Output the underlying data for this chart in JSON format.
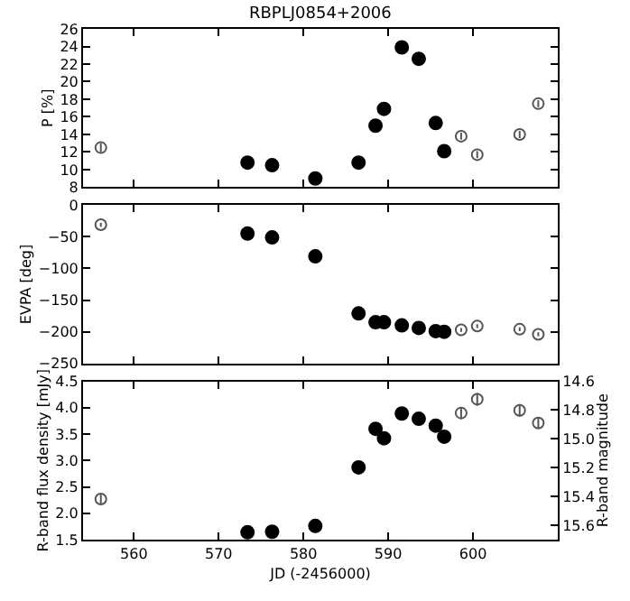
{
  "chart_data": [
    {
      "type": "scatter",
      "title": "RBPLJ0854+2006",
      "ylabel": "P [%]",
      "xlim": [
        554,
        610
      ],
      "xticks": [
        560,
        570,
        580,
        590,
        600
      ],
      "ylim": [
        8,
        26
      ],
      "yticks": [
        8,
        10,
        12,
        14,
        16,
        18,
        20,
        22,
        24,
        26
      ],
      "tick_labels": "y",
      "series": [
        {
          "color": "#000000",
          "marker": "circle",
          "x": [
            573.4,
            576.3,
            581.4,
            586.5,
            588.5,
            589.5,
            591.6,
            593.6,
            595.6,
            596.6
          ],
          "values": [
            10.8,
            10.5,
            9.0,
            10.8,
            15.0,
            16.9,
            23.9,
            22.6,
            15.3,
            12.1
          ]
        },
        {
          "color": "#555555",
          "marker": "circle-open",
          "x": [
            556.1,
            598.6,
            600.5,
            605.5,
            607.7
          ],
          "values": [
            12.5,
            13.8,
            11.7,
            14.0,
            17.5
          ],
          "errors": [
            0.5,
            0.4,
            0.4,
            0.4,
            0.4
          ]
        }
      ]
    },
    {
      "type": "scatter",
      "ylabel": "EVPA [deg]",
      "xlim": [
        554,
        610
      ],
      "xticks": [
        560,
        570,
        580,
        590,
        600
      ],
      "ylim": [
        -250,
        0
      ],
      "yticks": [
        -250,
        -200,
        -150,
        -100,
        -50,
        0
      ],
      "tick_labels": "y",
      "series": [
        {
          "color": "#000000",
          "marker": "circle",
          "x": [
            573.4,
            576.3,
            581.4,
            586.5,
            588.5,
            589.5,
            591.6,
            593.6,
            595.6,
            596.6
          ],
          "values": [
            -45,
            -51,
            -81,
            -171,
            -185,
            -185,
            -190,
            -194,
            -199,
            -200
          ]
        },
        {
          "color": "#555555",
          "marker": "circle-open",
          "x": [
            556.1,
            598.6,
            600.5,
            605.5,
            607.7
          ],
          "values": [
            -31,
            -197,
            -191,
            -196,
            -204
          ],
          "errors": [
            3,
            3,
            3,
            3,
            3
          ]
        }
      ]
    },
    {
      "type": "scatter",
      "xlabel": "JD (-2456000)",
      "ylabel": "R-band flux density [mJy]",
      "y2label": "R-band magnitude",
      "xlim": [
        554,
        610
      ],
      "xticks": [
        560,
        570,
        580,
        590,
        600
      ],
      "ylim": [
        1.5,
        4.5
      ],
      "yticks": [
        1.5,
        {
          "value": 2,
          "label": "2.0"
        },
        2.5,
        {
          "value": 3,
          "label": "3.0"
        },
        3.5,
        {
          "value": 4,
          "label": "4.0"
        },
        4.5
      ],
      "y2lim": [
        15.7,
        14.6
      ],
      "y2ticks": [
        {
          "value": 14.6,
          "label": "14.6"
        },
        {
          "value": 14.8,
          "label": "14.8"
        },
        {
          "value": 15.0,
          "label": "15.0"
        },
        {
          "value": 15.2,
          "label": "15.2"
        },
        {
          "value": 15.4,
          "label": "15.4"
        },
        {
          "value": 15.6,
          "label": "15.6"
        }
      ],
      "series": [
        {
          "color": "#000000",
          "marker": "circle",
          "x": [
            573.4,
            576.3,
            581.4,
            586.5,
            588.5,
            589.5,
            591.6,
            593.6,
            595.6,
            596.6
          ],
          "values": [
            1.64,
            1.65,
            1.76,
            2.87,
            3.6,
            3.42,
            3.89,
            3.79,
            3.66,
            3.45
          ],
          "errors": [
            0.08,
            0.05,
            0.05,
            0.05,
            0.1,
            0.08,
            0.07,
            0.08,
            0.07,
            0.07
          ]
        },
        {
          "color": "#555555",
          "marker": "circle-open",
          "x": [
            556.1,
            598.6,
            600.5,
            605.5,
            607.7
          ],
          "values": [
            2.27,
            3.9,
            4.16,
            3.95,
            3.71
          ],
          "errors": [
            0.1,
            0.1,
            0.12,
            0.12,
            0.1
          ]
        }
      ]
    }
  ]
}
